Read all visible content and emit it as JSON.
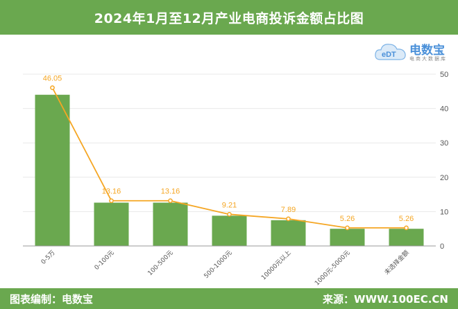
{
  "header": {
    "title": "2024年1月至12月产业电商投诉金额占比图"
  },
  "footer": {
    "left": "图表编制：电数宝",
    "right": "来源：WWW.100EC.CN"
  },
  "logo": {
    "name": "电数宝",
    "mark": "eDT",
    "sub": "电商大数据库"
  },
  "colors": {
    "bar": "#6aa84f",
    "line": "#f5a623",
    "header": "#6aa84f"
  },
  "chart_data": {
    "type": "bar",
    "categories": [
      "0-5万",
      "0-100元",
      "100-500元",
      "500-1000元",
      "10000元以上",
      "1000元-5000元",
      "未选择金额"
    ],
    "values": [
      44,
      12.6,
      12.6,
      8.8,
      7.5,
      5.0,
      5.0
    ],
    "line_values": [
      46.05,
      13.16,
      13.16,
      9.21,
      7.89,
      5.26,
      5.26
    ],
    "line_labels": [
      "46.05",
      "13.16",
      "13.16",
      "9.21",
      "7.89",
      "5.26",
      "5.26"
    ],
    "yticks": [
      "0",
      "10",
      "20",
      "30",
      "40",
      "50"
    ],
    "ylim": [
      0,
      50
    ],
    "grid": true,
    "title": "2024年1月至12月产业电商投诉金额占比图"
  }
}
